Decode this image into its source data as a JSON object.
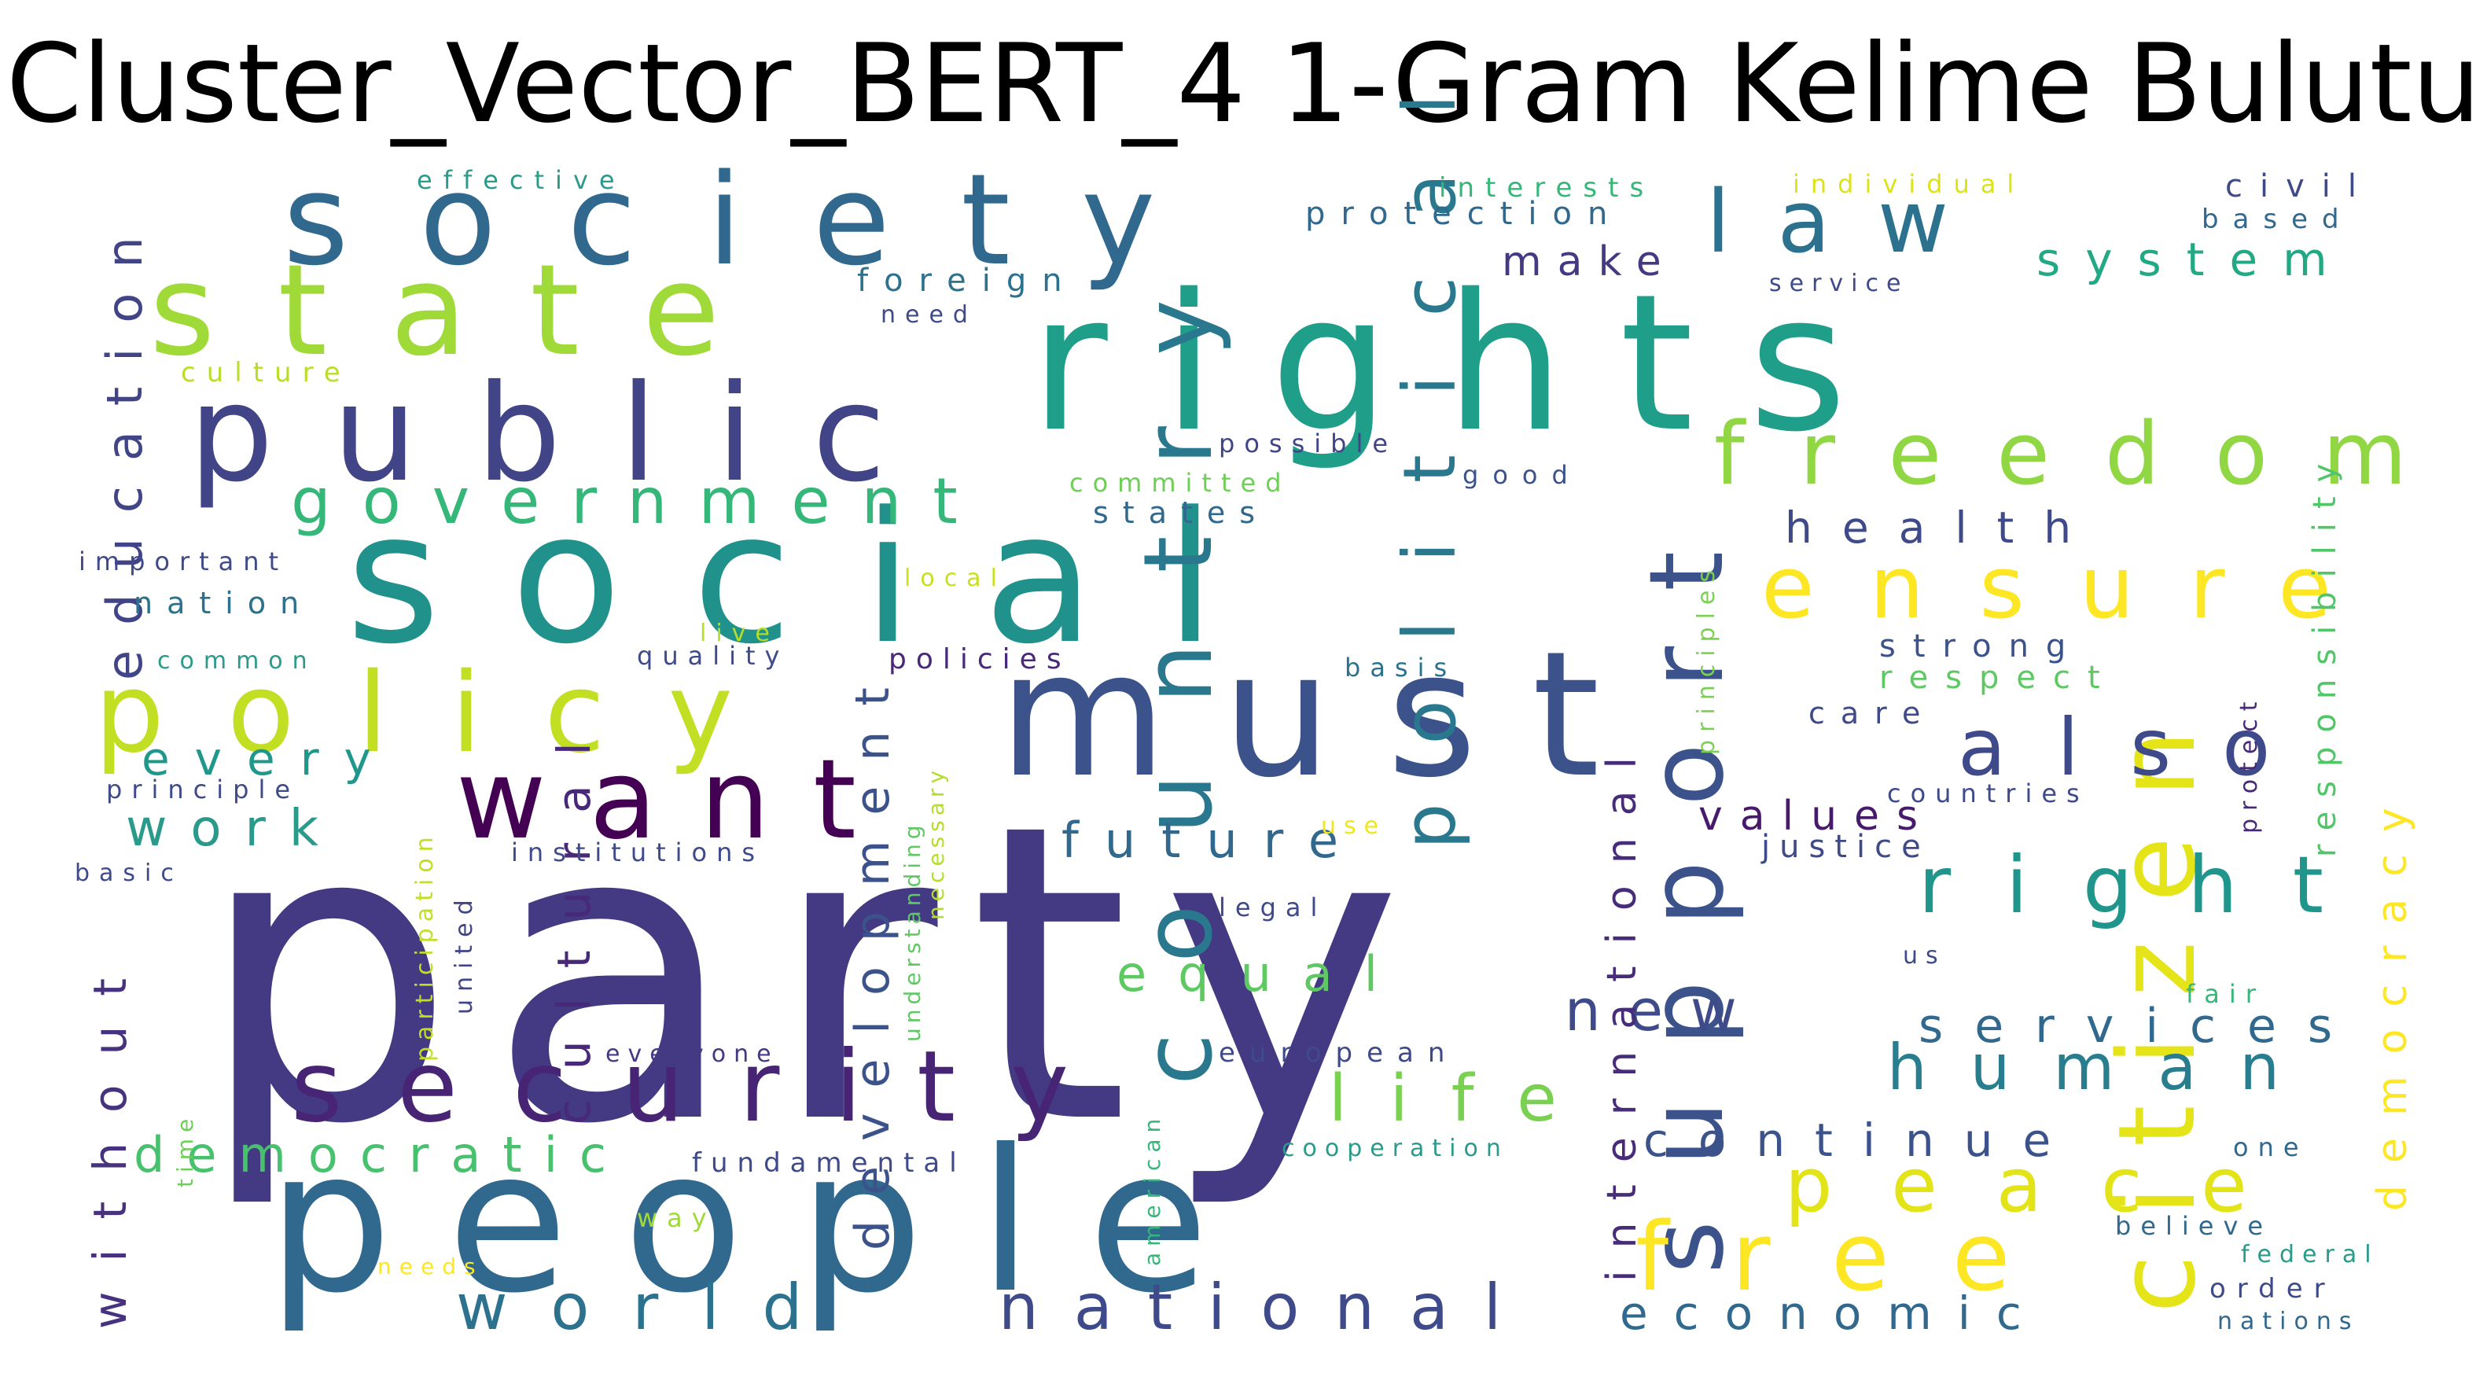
{
  "title": "Cluster_Vector_BERT_4 1-Gram Kelime Bulutu",
  "colors": {
    "dark_purple": "#440154",
    "indigo": "#482878",
    "slate_purple": "#3e4a89",
    "blue": "#31688e",
    "teal": "#26828e",
    "green_teal": "#1f9e89",
    "green": "#35b779",
    "light_green": "#6ece58",
    "yellow_green": "#b5de2b",
    "yellow": "#fde725"
  },
  "words": [
    {
      "text": "party",
      "color": "#443983"
    },
    {
      "text": "people",
      "color": "#31688e"
    },
    {
      "text": "social",
      "color": "#21918c"
    },
    {
      "text": "rights",
      "color": "#1f9e89"
    },
    {
      "text": "must",
      "color": "#3b528b"
    },
    {
      "text": "society",
      "color": "#31688e"
    },
    {
      "text": "state",
      "color": "#a0da39"
    },
    {
      "text": "public",
      "color": "#414487"
    },
    {
      "text": "want",
      "color": "#440154"
    },
    {
      "text": "policy",
      "color": "#c2df23"
    },
    {
      "text": "security",
      "color": "#482475"
    },
    {
      "text": "country",
      "color": "#2a788e"
    },
    {
      "text": "citizen",
      "color": "#e5e419"
    },
    {
      "text": "support",
      "color": "#3b528b"
    },
    {
      "text": "political",
      "color": "#2a788e"
    },
    {
      "text": "law",
      "color": "#2c728e"
    },
    {
      "text": "freedom",
      "color": "#90d743"
    },
    {
      "text": "ensure",
      "color": "#fde725"
    },
    {
      "text": "also",
      "color": "#3e4a89"
    },
    {
      "text": "right",
      "color": "#1f958b"
    },
    {
      "text": "free",
      "color": "#fde725"
    },
    {
      "text": "peace",
      "color": "#e2e418"
    },
    {
      "text": "human",
      "color": "#287d8e"
    },
    {
      "text": "services",
      "color": "#31688e"
    },
    {
      "text": "continue",
      "color": "#3b528b"
    },
    {
      "text": "economic",
      "color": "#31688e"
    },
    {
      "text": "national",
      "color": "#3e4a89"
    },
    {
      "text": "world",
      "color": "#2c728e"
    },
    {
      "text": "life",
      "color": "#7ad151"
    },
    {
      "text": "new",
      "color": "#3e4a89"
    },
    {
      "text": "equal",
      "color": "#5ec962"
    },
    {
      "text": "future",
      "color": "#31688e"
    },
    {
      "text": "development",
      "color": "#3b528b"
    },
    {
      "text": "cultural",
      "color": "#482878"
    },
    {
      "text": "government",
      "color": "#35b779"
    },
    {
      "text": "democratic",
      "color": "#48c16e"
    },
    {
      "text": "without",
      "color": "#46327e"
    },
    {
      "text": "work",
      "color": "#2a9a8a"
    },
    {
      "text": "every",
      "color": "#1f988b"
    },
    {
      "text": "education",
      "color": "#414487"
    },
    {
      "text": "international",
      "color": "#472c7a"
    },
    {
      "text": "democracy",
      "color": "#fde725"
    },
    {
      "text": "responsibility",
      "color": "#52c569"
    },
    {
      "text": "system",
      "color": "#22a884"
    },
    {
      "text": "health",
      "color": "#3e4a89"
    },
    {
      "text": "make",
      "color": "#443a83"
    },
    {
      "text": "values",
      "color": "#481a6c"
    },
    {
      "text": "justice",
      "color": "#3e4a89"
    },
    {
      "text": "protection",
      "color": "#31688e"
    },
    {
      "text": "foreign",
      "color": "#2c728e"
    },
    {
      "text": "strong",
      "color": "#3b528b"
    },
    {
      "text": "respect",
      "color": "#5ec962"
    },
    {
      "text": "care",
      "color": "#3e4a89"
    },
    {
      "text": "civil",
      "color": "#3e4a89"
    },
    {
      "text": "based",
      "color": "#31688e"
    },
    {
      "text": "interests",
      "color": "#35b779"
    },
    {
      "text": "individual",
      "color": "#dde318"
    },
    {
      "text": "effective",
      "color": "#2a9a8a"
    },
    {
      "text": "culture",
      "color": "#b8de29"
    },
    {
      "text": "need",
      "color": "#3e4a89"
    },
    {
      "text": "service",
      "color": "#3e4a89"
    },
    {
      "text": "possible",
      "color": "#414487"
    },
    {
      "text": "committed",
      "color": "#6ece58"
    },
    {
      "text": "states",
      "color": "#31688e"
    },
    {
      "text": "good",
      "color": "#3b528b"
    },
    {
      "text": "principles",
      "color": "#7ad151"
    },
    {
      "text": "important",
      "color": "#3e4a89"
    },
    {
      "text": "nation",
      "color": "#2c728e"
    },
    {
      "text": "local",
      "color": "#c8e020"
    },
    {
      "text": "live",
      "color": "#b5de2b"
    },
    {
      "text": "quality",
      "color": "#3e4a89"
    },
    {
      "text": "policies",
      "color": "#482878"
    },
    {
      "text": "basis",
      "color": "#2c728e"
    },
    {
      "text": "common",
      "color": "#2a9a8a"
    },
    {
      "text": "principle",
      "color": "#3e4a89"
    },
    {
      "text": "basic",
      "color": "#3e4a89"
    },
    {
      "text": "institutions",
      "color": "#3e4a89"
    },
    {
      "text": "participation",
      "color": "#c2df23"
    },
    {
      "text": "united",
      "color": "#414487"
    },
    {
      "text": "understanding",
      "color": "#5ec962"
    },
    {
      "text": "necessary",
      "color": "#b5de2b"
    },
    {
      "text": "use",
      "color": "#f1e51d"
    },
    {
      "text": "legal",
      "color": "#3e4a89"
    },
    {
      "text": "countries",
      "color": "#3e4a89"
    },
    {
      "text": "us",
      "color": "#3e4a89"
    },
    {
      "text": "protect",
      "color": "#482878"
    },
    {
      "text": "fair",
      "color": "#35b779"
    },
    {
      "text": "everyone",
      "color": "#443983"
    },
    {
      "text": "european",
      "color": "#3e4a89"
    },
    {
      "text": "american",
      "color": "#35b779"
    },
    {
      "text": "fundamental",
      "color": "#3e4a89"
    },
    {
      "text": "time",
      "color": "#6ece58"
    },
    {
      "text": "cooperation",
      "color": "#2a9a8a"
    },
    {
      "text": "one",
      "color": "#31688e"
    },
    {
      "text": "believe",
      "color": "#31688e"
    },
    {
      "text": "federal",
      "color": "#2a9a8a"
    },
    {
      "text": "order",
      "color": "#3e4a89"
    },
    {
      "text": "nations",
      "color": "#31688e"
    },
    {
      "text": "way",
      "color": "#a0da39"
    },
    {
      "text": "needs",
      "color": "#fde725"
    }
  ]
}
